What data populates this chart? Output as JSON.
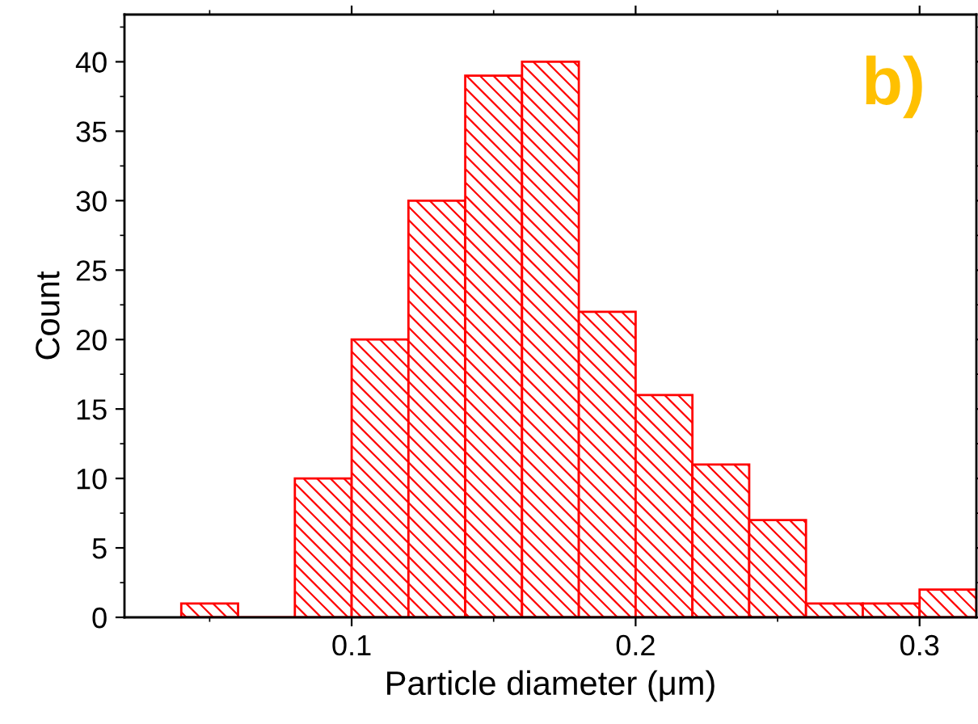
{
  "chart_data": {
    "type": "histogram",
    "xlabel": "Particle diameter (μm)",
    "ylabel": "Count",
    "bins": [
      0.04,
      0.06,
      0.08,
      0.1,
      0.12,
      0.14,
      0.16,
      0.18,
      0.2,
      0.22,
      0.24,
      0.26,
      0.28,
      0.3,
      0.32
    ],
    "values": [
      1,
      0,
      10,
      20,
      30,
      39,
      40,
      22,
      16,
      11,
      7,
      1,
      1,
      2
    ],
    "color": "#ff0000",
    "xlim": [
      0.02,
      0.32
    ],
    "xticks": [
      0.1,
      0.2,
      0.3
    ],
    "ylim": [
      0,
      43.4
    ],
    "yticks": [
      0,
      5,
      10,
      15,
      20,
      25,
      30,
      35,
      40
    ],
    "grid": false,
    "annotations": [
      "b)"
    ]
  }
}
